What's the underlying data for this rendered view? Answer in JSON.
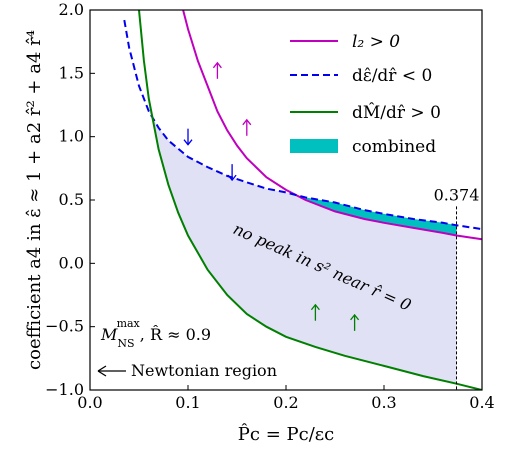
{
  "chart_data": {
    "type": "line",
    "xlabel": "P̂c = Pc/εc",
    "ylabel": "coefficient a4 in ε̂ ≈ 1 + a2 r̂² + a4 r̂⁴",
    "xlim": [
      0.0,
      0.4
    ],
    "ylim": [
      -1.0,
      2.0
    ],
    "xticks": [
      0.0,
      0.1,
      0.2,
      0.3,
      0.4
    ],
    "xtick_labels": [
      "0.0",
      "0.1",
      "0.2",
      "0.3",
      "0.4"
    ],
    "yticks": [
      -1.0,
      -0.5,
      0.0,
      0.5,
      1.0,
      1.5,
      2.0
    ],
    "ytick_labels": [
      "−1.0",
      "−0.5",
      "0.0",
      "0.5",
      "1.0",
      "1.5",
      "2.0"
    ],
    "legend_position": "top-right",
    "series": [
      {
        "name": "l₂ > 0",
        "color": "#bf00bf",
        "style": "solid",
        "x": [
          0.095,
          0.1,
          0.11,
          0.12,
          0.13,
          0.14,
          0.15,
          0.16,
          0.18,
          0.2,
          0.22,
          0.25,
          0.28,
          0.3,
          0.33,
          0.36,
          0.374,
          0.4
        ],
        "y": [
          2.0,
          1.85,
          1.6,
          1.4,
          1.2,
          1.05,
          0.93,
          0.83,
          0.68,
          0.58,
          0.5,
          0.41,
          0.35,
          0.32,
          0.28,
          0.24,
          0.22,
          0.19
        ]
      },
      {
        "name": "dε̂/dr̂ < 0",
        "color": "#0000ee",
        "style": "dashed",
        "x": [
          0.035,
          0.04,
          0.05,
          0.06,
          0.07,
          0.08,
          0.1,
          0.12,
          0.14,
          0.16,
          0.18,
          0.2,
          0.22,
          0.25,
          0.28,
          0.3,
          0.33,
          0.36,
          0.374,
          0.4
        ],
        "y": [
          1.92,
          1.7,
          1.4,
          1.2,
          1.07,
          0.97,
          0.84,
          0.76,
          0.69,
          0.64,
          0.59,
          0.56,
          0.52,
          0.48,
          0.42,
          0.39,
          0.35,
          0.32,
          0.3,
          0.27
        ]
      },
      {
        "name": "dM̂/dr̂ > 0",
        "color": "#008000",
        "style": "solid",
        "x": [
          0.05,
          0.055,
          0.06,
          0.07,
          0.08,
          0.09,
          0.1,
          0.12,
          0.14,
          0.16,
          0.18,
          0.2,
          0.23,
          0.26,
          0.3,
          0.34,
          0.374,
          0.4
        ],
        "y": [
          2.0,
          1.6,
          1.3,
          0.9,
          0.62,
          0.4,
          0.22,
          -0.05,
          -0.25,
          -0.4,
          -0.5,
          -0.58,
          -0.66,
          -0.73,
          -0.81,
          -0.89,
          -0.95,
          -1.0
        ]
      }
    ],
    "combined_region": {
      "name": "combined",
      "color": "#00bfbf",
      "x": [
        0.22,
        0.25,
        0.28,
        0.3,
        0.33,
        0.36,
        0.374
      ],
      "y_lower": [
        0.5,
        0.41,
        0.35,
        0.32,
        0.28,
        0.24,
        0.22
      ],
      "y_upper": [
        0.52,
        0.48,
        0.42,
        0.39,
        0.35,
        0.32,
        0.3
      ]
    },
    "shaded_region": {
      "label": "no peak in s² near r̂ = 0",
      "color": "#dcdcf5",
      "x_range": [
        0.06,
        0.374
      ]
    },
    "vline": {
      "x": 0.374,
      "label": "0.374"
    },
    "annotations": {
      "ns_text": "M",
      "ns_sub": "NS",
      "ns_sup": "max",
      "ns_tail": ", R̂ ≈ 0.9",
      "newtonian": "Newtonian region"
    },
    "arrows": [
      {
        "x": 0.13,
        "y": 1.52,
        "dir": "up",
        "color": "#bf00bf"
      },
      {
        "x": 0.16,
        "y": 1.07,
        "dir": "up",
        "color": "#bf00bf"
      },
      {
        "x": 0.1,
        "y": 1.0,
        "dir": "down",
        "color": "#0000ee"
      },
      {
        "x": 0.145,
        "y": 0.72,
        "dir": "down",
        "color": "#0000ee"
      },
      {
        "x": 0.23,
        "y": -0.39,
        "dir": "up",
        "color": "#008000"
      },
      {
        "x": 0.27,
        "y": -0.47,
        "dir": "up",
        "color": "#008000"
      }
    ]
  }
}
